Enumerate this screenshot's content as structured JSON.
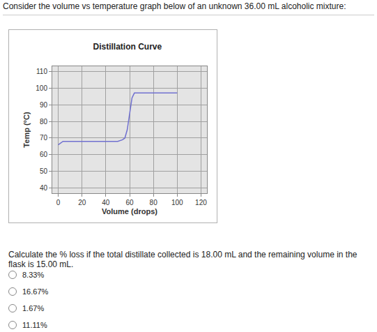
{
  "question": "Consider the volume vs temperature graph below of an unknown 36.00 mL alcoholic mixture:",
  "chart_data": {
    "type": "line",
    "title": "Distillation Curve",
    "x_label": "Volume (drops)",
    "y_label": "Temp (°C)",
    "x": [
      0,
      2,
      4,
      10,
      20,
      30,
      40,
      50,
      54,
      56,
      58,
      60,
      62,
      64,
      70,
      80,
      90,
      100
    ],
    "values": [
      66,
      67,
      68,
      68,
      68,
      68,
      68,
      68,
      69,
      70,
      75,
      85,
      94,
      97,
      97,
      97,
      97,
      97
    ],
    "color": "#7070d0",
    "xlim": [
      -5,
      125
    ],
    "ylim": [
      37,
      113
    ],
    "xticks": [
      0,
      20,
      40,
      60,
      80,
      100,
      120
    ],
    "yticks": [
      40,
      50,
      60,
      70,
      80,
      90,
      100,
      110
    ],
    "grid": true
  },
  "prompt": "Calculate the % loss if the total distillate collected is 18.00 mL and the remaining volume in the flask is 15.00 mL.",
  "options": [
    "8.33%",
    "16.67%",
    "1.67%",
    "11.11%"
  ]
}
